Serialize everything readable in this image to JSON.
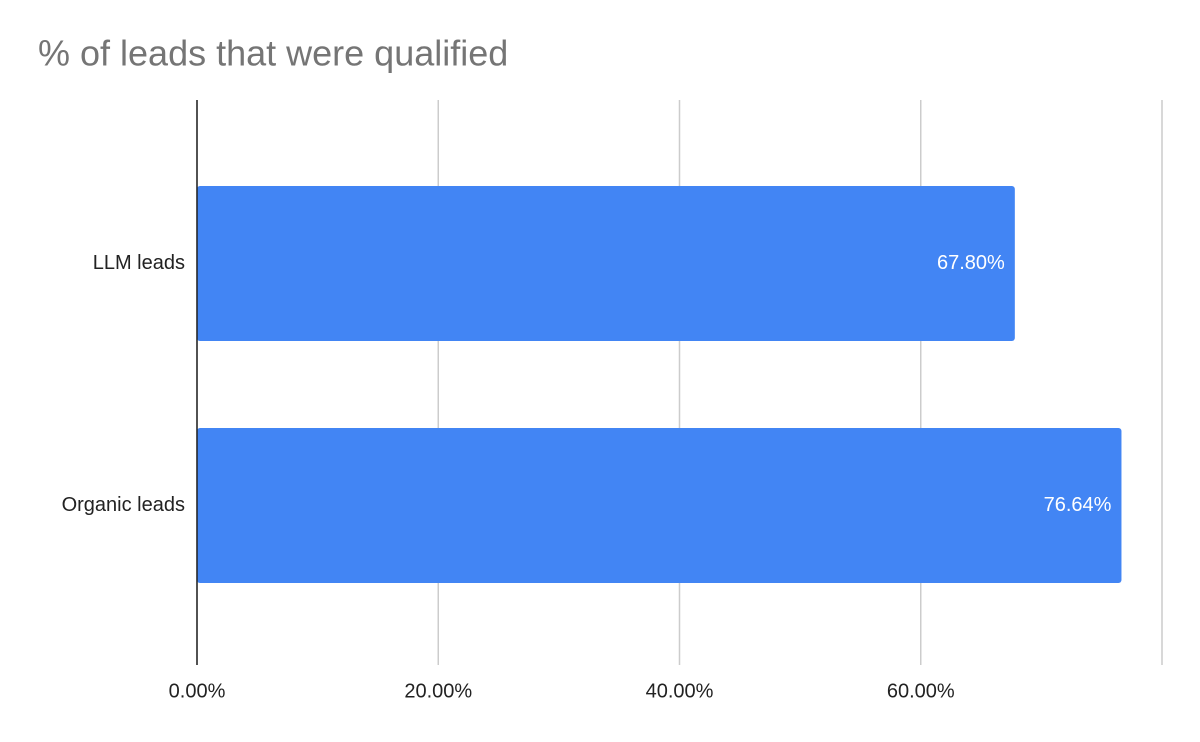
{
  "chart_data": {
    "type": "bar",
    "orientation": "horizontal",
    "title": "% of leads that were qualified",
    "categories": [
      "LLM leads",
      "Organic leads"
    ],
    "values": [
      67.8,
      76.64
    ],
    "value_labels": [
      "67.80%",
      "76.64%"
    ],
    "color": "#4285f4",
    "xlim": [
      0,
      80
    ],
    "xticks": [
      {
        "value": 0,
        "label": "0.00%"
      },
      {
        "value": 20,
        "label": "20.00%"
      },
      {
        "value": 40,
        "label": "40.00%"
      },
      {
        "value": 60,
        "label": "60.00%"
      }
    ],
    "grid": true
  }
}
